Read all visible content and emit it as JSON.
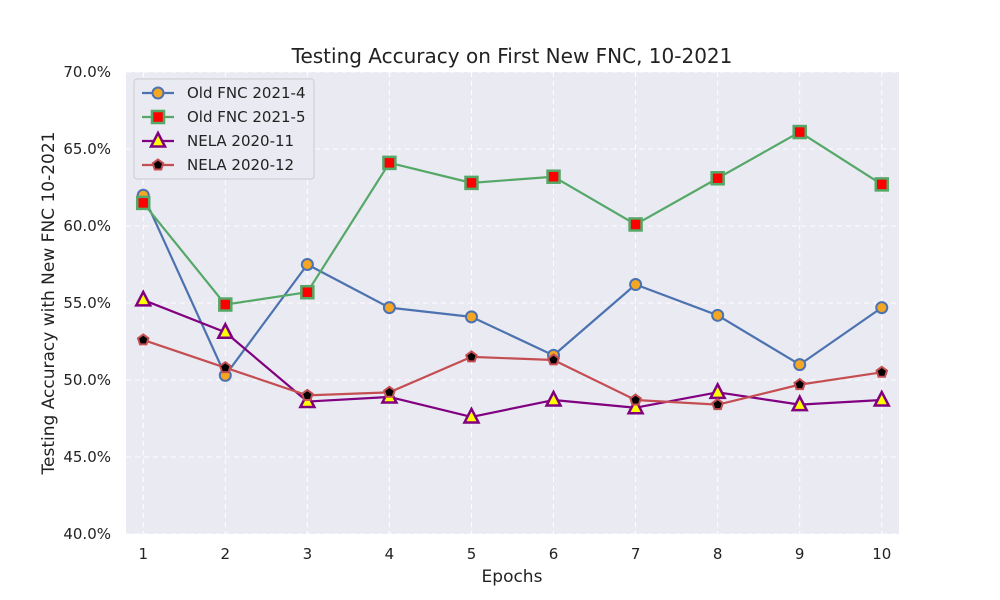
{
  "chart_data": {
    "type": "line",
    "title": "Testing Accuracy on First New FNC, 10-2021",
    "xlabel": "Epochs",
    "ylabel": "Testing Accuracy with New FNC 10-2021",
    "x": [
      1,
      2,
      3,
      4,
      5,
      6,
      7,
      8,
      9,
      10
    ],
    "x_tick_labels": [
      "1",
      "2",
      "3",
      "4",
      "5",
      "6",
      "7",
      "8",
      "9",
      "10"
    ],
    "ylim": [
      0.4,
      0.7
    ],
    "y_ticks": [
      0.4,
      0.45,
      0.5,
      0.55,
      0.6,
      0.65,
      0.7
    ],
    "y_tick_labels": [
      "40.0%",
      "45.0%",
      "50.0%",
      "55.0%",
      "60.0%",
      "65.0%",
      "70.0%"
    ],
    "grid": true,
    "legend_position": "top-left",
    "series": [
      {
        "name": "Old FNC 2021-4",
        "values": [
          0.62,
          0.503,
          0.575,
          0.547,
          0.541,
          0.516,
          0.562,
          0.542,
          0.51,
          0.547
        ],
        "line_color": "#4c72b0",
        "marker": "circle",
        "marker_fill": "#f5a623",
        "marker_edge": "#4c72b0"
      },
      {
        "name": "Old FNC 2021-5",
        "values": [
          0.615,
          0.549,
          0.557,
          0.641,
          0.628,
          0.632,
          0.601,
          0.631,
          0.661,
          0.627
        ],
        "line_color": "#55a868",
        "marker": "square",
        "marker_fill": "#ff0000",
        "marker_edge": "#55a868"
      },
      {
        "name": "NELA 2020-11",
        "values": [
          0.552,
          0.531,
          0.486,
          0.489,
          0.476,
          0.487,
          0.482,
          0.492,
          0.484,
          0.487
        ],
        "line_color": "#800080",
        "marker": "triangle",
        "marker_fill": "#ffff00",
        "marker_edge": "#800080"
      },
      {
        "name": "NELA 2020-12",
        "values": [
          0.526,
          0.508,
          0.49,
          0.492,
          0.515,
          0.513,
          0.487,
          0.484,
          0.497,
          0.505
        ],
        "line_color": "#c44e52",
        "marker": "pentagon",
        "marker_fill": "#000000",
        "marker_edge": "#c44e52"
      }
    ]
  },
  "colors": {
    "plot_background": "#eaeaf2",
    "grid": "#ffffff",
    "text": "#222222",
    "legend_background": "#eaeaf2",
    "legend_border": "#cccccc"
  }
}
